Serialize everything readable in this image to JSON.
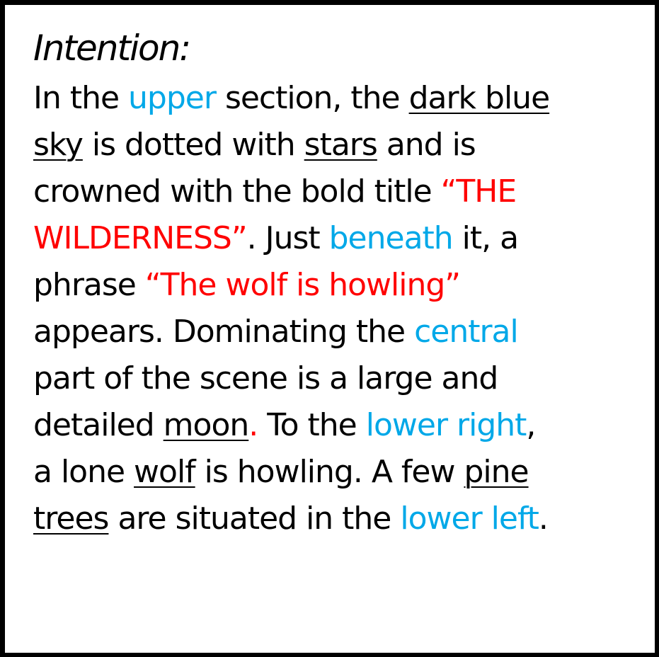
{
  "heading": "Intention:",
  "colors": {
    "plain": "#000000",
    "direction_word": "#00a8e8",
    "quoted_text": "#ff0000",
    "border": "#000000",
    "background": "#ffffff"
  },
  "paragraph": [
    [
      {
        "t": "In the ",
        "s": "plain"
      },
      {
        "t": "upper",
        "s": "blue"
      },
      {
        "t": " section, the ",
        "s": "plain"
      },
      {
        "t": "dark blue",
        "s": "ul"
      }
    ],
    [
      {
        "t": "sky",
        "s": "ul"
      },
      {
        "t": " is dotted with ",
        "s": "plain"
      },
      {
        "t": "stars",
        "s": "ul"
      },
      {
        "t": " and is",
        "s": "plain"
      }
    ],
    [
      {
        "t": "crowned with the bold title ",
        "s": "plain"
      },
      {
        "t": "“THE",
        "s": "red"
      }
    ],
    [
      {
        "t": "WILDERNESS”",
        "s": "red"
      },
      {
        "t": ". Just ",
        "s": "plain"
      },
      {
        "t": "beneath",
        "s": "blue"
      },
      {
        "t": " it, a",
        "s": "plain"
      }
    ],
    [
      {
        "t": "phrase ",
        "s": "plain"
      },
      {
        "t": "“The wolf is howling”",
        "s": "red"
      }
    ],
    [
      {
        "t": "appears. Dominating the ",
        "s": "plain"
      },
      {
        "t": "central",
        "s": "blue"
      }
    ],
    [
      {
        "t": "part of the scene is a large and",
        "s": "plain"
      }
    ],
    [
      {
        "t": "detailed ",
        "s": "plain"
      },
      {
        "t": "moon",
        "s": "ul"
      },
      {
        "t": ".",
        "s": "red"
      },
      {
        "t": " To the ",
        "s": "plain"
      },
      {
        "t": "lower right",
        "s": "blue"
      },
      {
        "t": ",",
        "s": "plain"
      }
    ],
    [
      {
        "t": "a lone ",
        "s": "plain"
      },
      {
        "t": "wolf",
        "s": "ul"
      },
      {
        "t": " is howling. A few ",
        "s": "plain"
      },
      {
        "t": "pine",
        "s": "ul"
      }
    ],
    [
      {
        "t": "trees",
        "s": "ul"
      },
      {
        "t": " are situated in the ",
        "s": "plain"
      },
      {
        "t": "lower left",
        "s": "blue"
      },
      {
        "t": ".",
        "s": "plain"
      }
    ]
  ]
}
